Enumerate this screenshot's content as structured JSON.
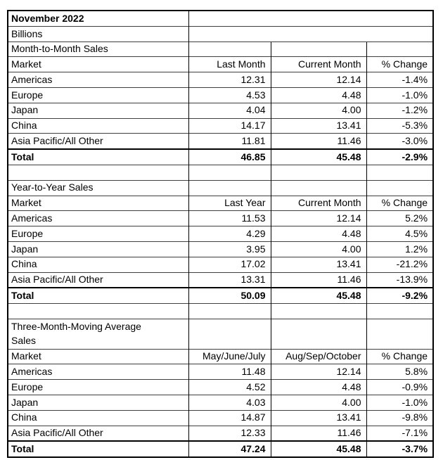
{
  "meta": {
    "report_month": "November 2022",
    "units_label": "Billions"
  },
  "colors": {
    "background": "#ffffff",
    "text": "#000000",
    "outer_border": "#000000",
    "vertical_grid": "#000000",
    "horizontal_grid": "#3f3f3f"
  },
  "sections": [
    {
      "title": "Month-to-Month Sales",
      "headers": [
        "Market",
        "Last Month",
        "Current Month",
        "% Change"
      ],
      "rows": [
        [
          "Americas",
          "12.31",
          "12.14",
          "-1.4%"
        ],
        [
          "Europe",
          "4.53",
          "4.48",
          "-1.0%"
        ],
        [
          "Japan",
          "4.04",
          "4.00",
          "-1.2%"
        ],
        [
          "China",
          "14.17",
          "13.41",
          "-5.3%"
        ],
        [
          "Asia Pacific/All Other",
          "11.81",
          "11.46",
          "-3.0%"
        ]
      ],
      "total": [
        "Total",
        "46.85",
        "45.48",
        "-2.9%"
      ]
    },
    {
      "title": "Year-to-Year Sales",
      "headers": [
        "Market",
        "Last Year",
        "Current Month",
        "% Change"
      ],
      "rows": [
        [
          "Americas",
          "11.53",
          "12.14",
          "5.2%"
        ],
        [
          "Europe",
          "4.29",
          "4.48",
          "4.5%"
        ],
        [
          "Japan",
          "3.95",
          "4.00",
          "1.2%"
        ],
        [
          "China",
          "17.02",
          "13.41",
          "-21.2%"
        ],
        [
          "Asia Pacific/All Other",
          "13.31",
          "11.46",
          "-13.9%"
        ]
      ],
      "total": [
        "Total",
        "50.09",
        "45.48",
        "-9.2%"
      ]
    },
    {
      "title": "Three-Month-Moving Average Sales",
      "tall_title": true,
      "headers": [
        "Market",
        "May/June/July",
        "Aug/Sep/October",
        "% Change"
      ],
      "rows": [
        [
          "Americas",
          "11.48",
          "12.14",
          "5.8%"
        ],
        [
          "Europe",
          "4.52",
          "4.48",
          "-0.9%"
        ],
        [
          "Japan",
          "4.03",
          "4.00",
          "-1.0%"
        ],
        [
          "China",
          "14.87",
          "13.41",
          "-9.8%"
        ],
        [
          "Asia Pacific/All Other",
          "12.33",
          "11.46",
          "-7.1%"
        ]
      ],
      "total": [
        "Total",
        "47.24",
        "45.48",
        "-3.7%"
      ]
    }
  ]
}
